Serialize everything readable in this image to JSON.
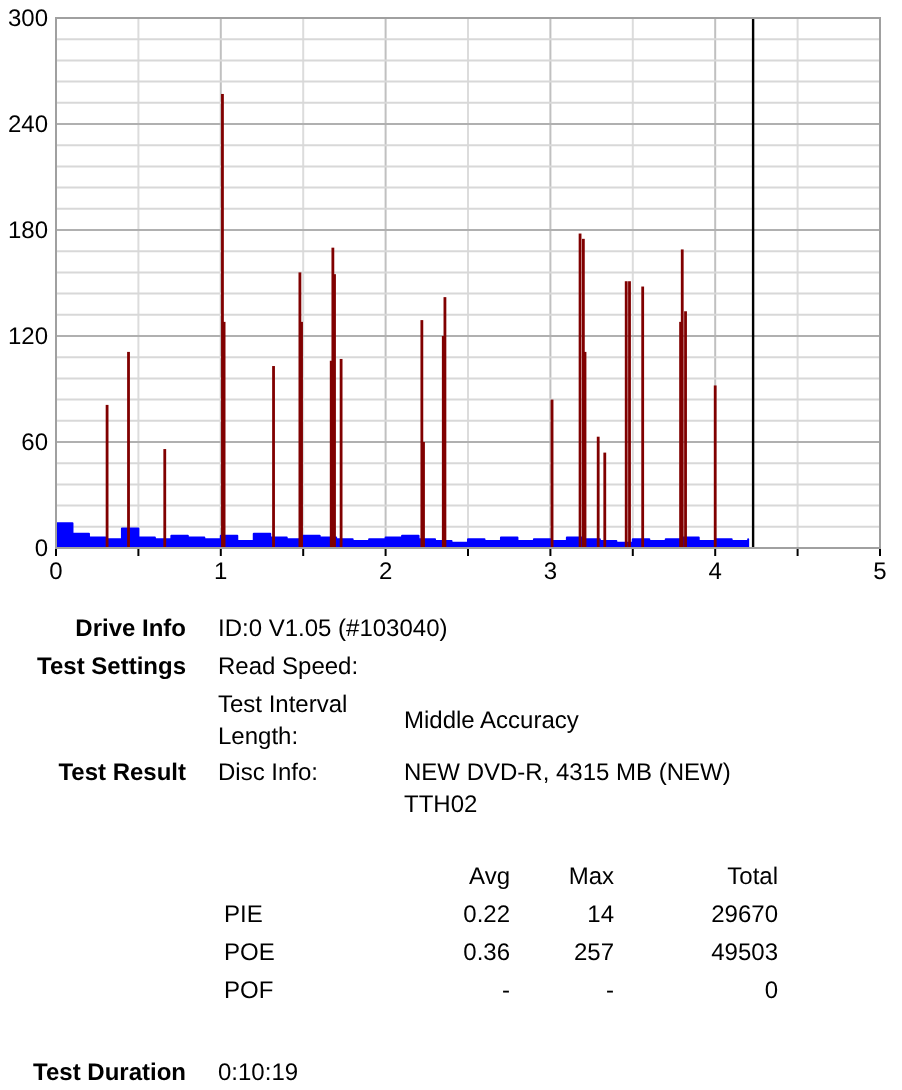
{
  "chart_data": {
    "type": "bar",
    "xlim": [
      0,
      5
    ],
    "ylim": [
      0,
      300
    ],
    "xticks": [
      0,
      {
        "value": 0.5,
        "label": null
      },
      1,
      {
        "value": 1.5,
        "label": null
      },
      2,
      {
        "value": 2.5,
        "label": null
      },
      3,
      {
        "value": 3.5,
        "label": null
      },
      4,
      {
        "value": 4.5,
        "label": null
      },
      5
    ],
    "yticks": [
      0,
      {
        "value": 12,
        "label": null
      },
      {
        "value": 24,
        "label": null
      },
      {
        "value": 36,
        "label": null
      },
      {
        "value": 48,
        "label": null
      },
      60,
      {
        "value": 72,
        "label": null
      },
      {
        "value": 84,
        "label": null
      },
      {
        "value": 96,
        "label": null
      },
      {
        "value": 108,
        "label": null
      },
      120,
      {
        "value": 132,
        "label": null
      },
      {
        "value": 144,
        "label": null
      },
      {
        "value": 156,
        "label": null
      },
      {
        "value": 168,
        "label": null
      },
      180,
      {
        "value": 192,
        "label": null
      },
      {
        "value": 204,
        "label": null
      },
      {
        "value": 216,
        "label": null
      },
      {
        "value": 228,
        "label": null
      },
      240,
      {
        "value": 252,
        "label": null
      },
      {
        "value": 264,
        "label": null
      },
      {
        "value": 276,
        "label": null
      },
      {
        "value": 288,
        "label": null
      },
      300
    ],
    "grid": true,
    "series": [
      {
        "type": "area",
        "color": "#0000ff",
        "x": [
          0,
          0.1,
          0.2,
          0.3,
          0.4,
          0.5,
          0.6,
          0.7,
          0.8,
          0.9,
          1,
          1.1,
          1.2,
          1.3,
          1.4,
          1.5,
          1.6,
          1.7,
          1.8,
          1.9,
          2,
          2.1,
          2.2,
          2.3,
          2.4,
          2.5,
          2.6,
          2.7,
          2.8,
          2.9,
          3,
          3.1,
          3.2,
          3.3,
          3.4,
          3.5,
          3.6,
          3.7,
          3.8,
          3.9,
          4,
          4.1,
          4.2
        ],
        "values": [
          14,
          8,
          6,
          5,
          11,
          6,
          5,
          7,
          6,
          5,
          7,
          4,
          8,
          6,
          5,
          7,
          6,
          5,
          4,
          5,
          6,
          7,
          5,
          4,
          3,
          5,
          4,
          6,
          4,
          5,
          4,
          6,
          5,
          4,
          3,
          5,
          4,
          5,
          6,
          4,
          5,
          4,
          5
        ]
      },
      {
        "color": "#800000",
        "x": [
          0.31,
          0.44,
          0.66,
          1.01,
          1.02,
          1.32,
          1.48,
          1.49,
          1.67,
          1.68,
          1.69,
          1.73,
          2.22,
          2.23,
          2.35,
          2.36,
          3.01,
          3.18,
          3.2,
          3.21,
          3.29,
          3.33,
          3.46,
          3.48,
          3.56,
          3.79,
          3.8,
          3.82,
          4
        ],
        "values": [
          81,
          111,
          56,
          257,
          128,
          103,
          156,
          128,
          106,
          170,
          155,
          107,
          129,
          60,
          120,
          142,
          84,
          178,
          175,
          111,
          63,
          54,
          151,
          151,
          148,
          128,
          169,
          134,
          92
        ]
      }
    ],
    "ref_lines": [
      {
        "axis": "x",
        "value": 4.23,
        "color": "#000000"
      }
    ],
    "annotations": [
      "Drive Info",
      "ID:0 V1.05 (#103040)",
      "Test Settings",
      "Read Speed:",
      "Test Interval Length:",
      "Middle Accuracy",
      "Test Result",
      "Disc Info:",
      "NEW DVD-R, 4315 MB (NEW) TTH02",
      "Avg",
      "Max",
      "Total",
      "PIE",
      "0.22",
      "14",
      "29670",
      "POE",
      "0.36",
      "257",
      "49503",
      "POF",
      "-",
      "-",
      "0",
      "Test Duration",
      "0:10:19"
    ]
  }
}
